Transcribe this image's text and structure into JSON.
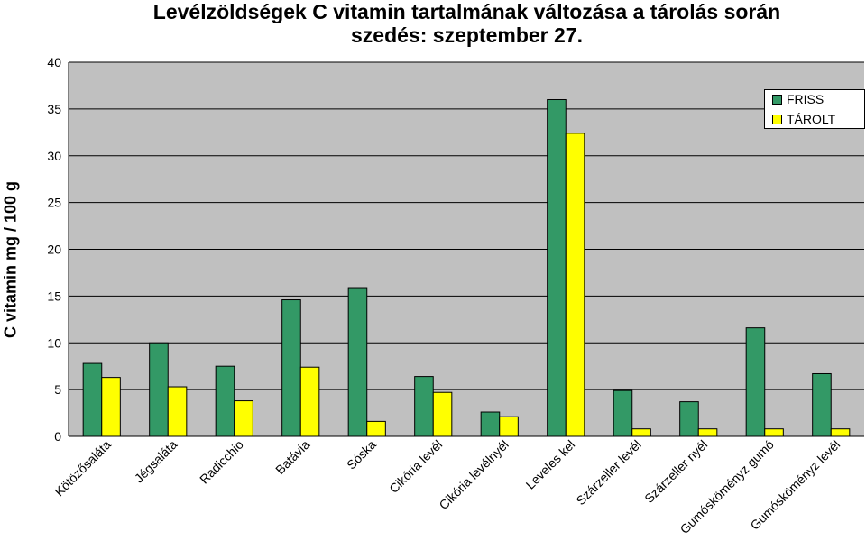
{
  "chart_data": {
    "type": "bar",
    "title": "Levélzöldségek C vitamin tartalmának változása a tárolás során",
    "subtitle": "szedés: szeptember 27.",
    "xlabel": "",
    "ylabel": "C vitamin mg / 100 g",
    "ylim": [
      0,
      40
    ],
    "yticks": [
      0,
      5,
      10,
      15,
      20,
      25,
      30,
      35,
      40
    ],
    "grid": true,
    "legend_position": "top-right",
    "categories": [
      "Kötözősaláta",
      "Jégsaláta",
      "Radicchio",
      "Batávia",
      "Sóska",
      "Cikória levél",
      "Cikória levélnyél",
      "Leveles kel",
      "Szárzeller levél",
      "Szárzeller nyél",
      "Gumósköményz gumó",
      "Gumósköményz levél"
    ],
    "series": [
      {
        "name": "FRISS",
        "color": "#339966",
        "values": [
          7.8,
          10.0,
          7.5,
          14.6,
          15.9,
          6.4,
          2.6,
          36.0,
          4.9,
          3.7,
          11.6,
          6.7
        ]
      },
      {
        "name": "TÁROLT",
        "color": "#ffff00",
        "values": [
          6.3,
          5.3,
          3.8,
          7.4,
          1.6,
          4.7,
          2.1,
          32.4,
          0.8,
          0.8,
          0.8,
          0.8
        ]
      }
    ],
    "plot_background": "#c0c0c0"
  }
}
